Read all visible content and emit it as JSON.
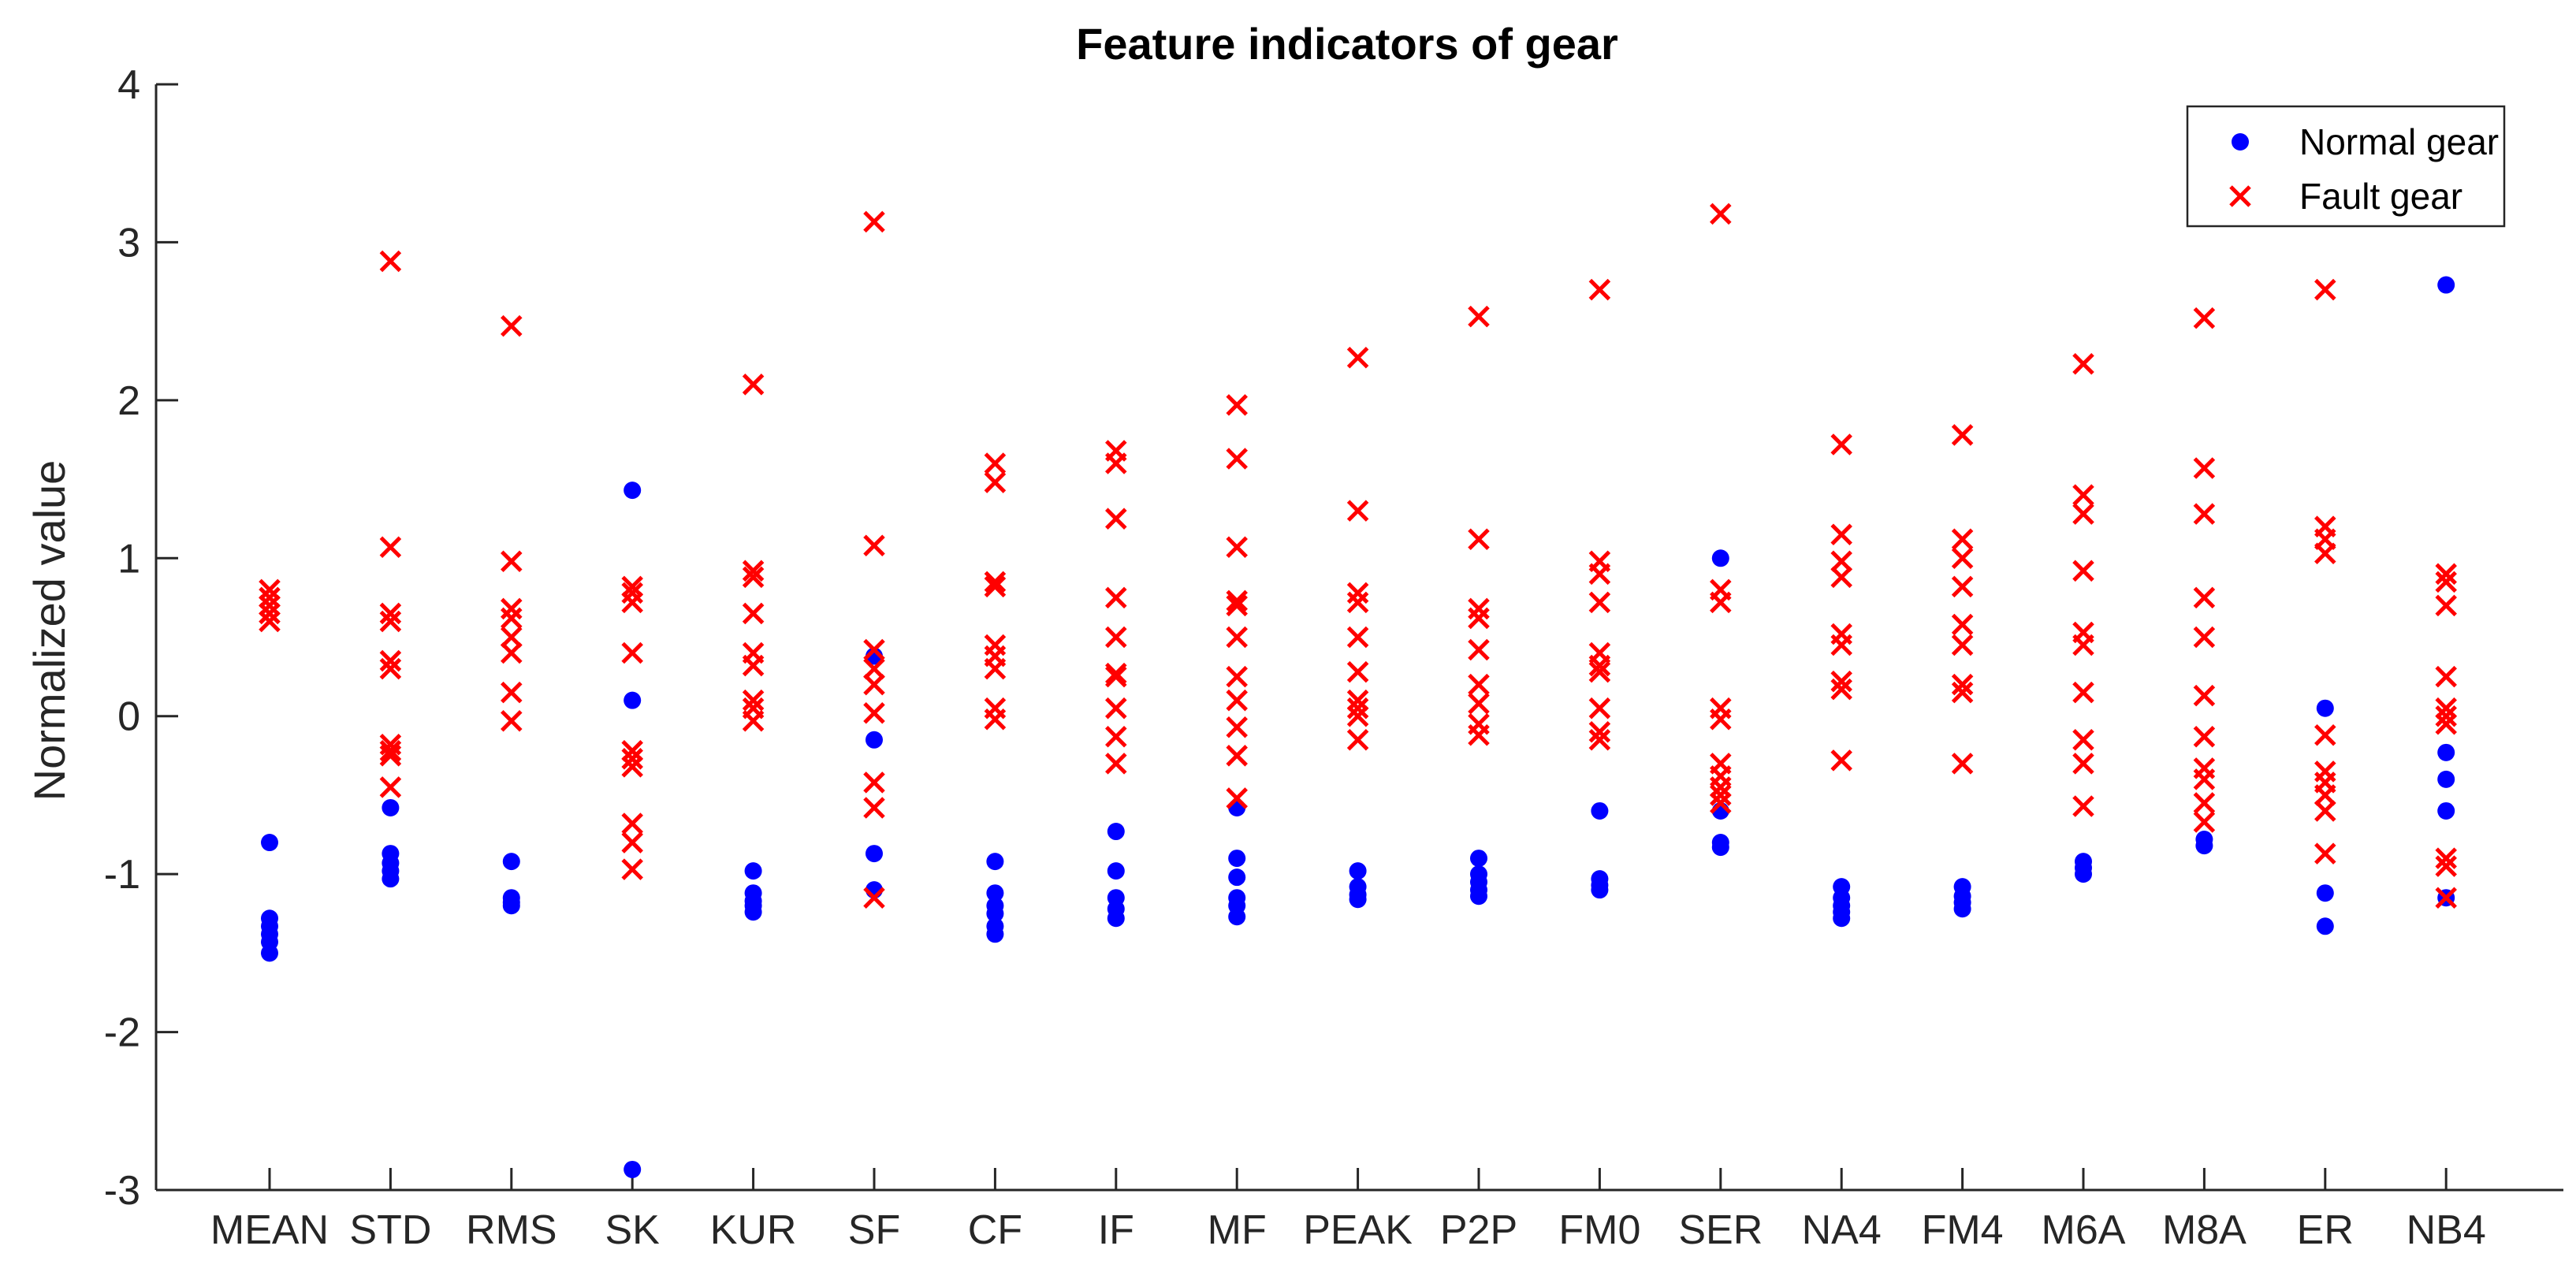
{
  "chart_data": {
    "type": "scatter",
    "title": "Feature indicators of gear",
    "xlabel": "",
    "ylabel": "Normalized value",
    "ylim": [
      -3,
      4
    ],
    "yticks": [
      "-3",
      "-2",
      "-1",
      "0",
      "1",
      "2",
      "3",
      "4"
    ],
    "categories": [
      "MEAN",
      "STD",
      "RMS",
      "SK",
      "KUR",
      "SF",
      "CF",
      "IF",
      "MF",
      "PEAK",
      "P2P",
      "FM0",
      "SER",
      "NA4",
      "FM4",
      "M6A",
      "M8A",
      "ER",
      "NB4"
    ],
    "grid": false,
    "legend_position": "top-right",
    "series": [
      {
        "name": "Normal gear",
        "color": "#0000ff",
        "marker": "filled-circle",
        "values": [
          [
            -0.8,
            -1.28,
            -1.33,
            -1.38,
            -1.43,
            -1.5
          ],
          [
            -0.58,
            -0.87,
            -0.93,
            -0.98,
            -1.03
          ],
          [
            -0.92,
            -1.15,
            -1.18,
            -1.2
          ],
          [
            1.43,
            0.1,
            -2.87
          ],
          [
            -0.98,
            -1.12,
            -1.17,
            -1.2,
            -1.24
          ],
          [
            0.38,
            -0.15,
            -0.87,
            -1.1
          ],
          [
            -0.92,
            -1.12,
            -1.2,
            -1.25,
            -1.33,
            -1.38
          ],
          [
            -0.73,
            -0.98,
            -1.15,
            -1.22,
            -1.28
          ],
          [
            -0.58,
            -0.9,
            -1.02,
            -1.15,
            -1.2,
            -1.27
          ],
          [
            -0.98,
            -1.08,
            -1.13,
            -1.16
          ],
          [
            -0.9,
            -1.0,
            -1.05,
            -1.1,
            -1.14
          ],
          [
            -0.6,
            -1.03,
            -1.07,
            -1.1
          ],
          [
            1.0,
            -0.6,
            -0.8,
            -0.83
          ],
          [
            -1.08,
            -1.15,
            -1.2,
            -1.24,
            -1.28
          ],
          [
            -1.08,
            -1.14,
            -1.18,
            -1.22
          ],
          [
            -0.92,
            -0.96,
            -1.0
          ],
          [
            -0.78,
            -0.82
          ],
          [
            0.05,
            -1.12,
            -1.33
          ],
          [
            2.73,
            -0.23,
            -0.4,
            -0.6,
            -1.15
          ]
        ]
      },
      {
        "name": "Fault gear",
        "color": "#ff0000",
        "marker": "x",
        "values": [
          [
            0.8,
            0.75,
            0.7,
            0.65,
            0.6
          ],
          [
            2.88,
            1.07,
            0.65,
            0.6,
            0.35,
            0.3,
            -0.18,
            -0.22,
            -0.25,
            -0.45
          ],
          [
            2.47,
            0.98,
            0.68,
            0.62,
            0.5,
            0.4,
            0.15,
            -0.03
          ],
          [
            0.82,
            0.78,
            0.72,
            0.4,
            -0.22,
            -0.27,
            -0.32,
            -0.68,
            -0.8,
            -0.97
          ],
          [
            2.1,
            0.92,
            0.88,
            0.65,
            0.4,
            0.32,
            0.1,
            0.05,
            -0.03
          ],
          [
            3.13,
            1.08,
            0.42,
            0.3,
            0.2,
            0.02,
            -0.42,
            -0.58,
            -1.15
          ],
          [
            1.6,
            1.48,
            0.85,
            0.82,
            0.45,
            0.38,
            0.3,
            0.05,
            -0.02
          ],
          [
            1.68,
            1.6,
            1.25,
            0.75,
            0.5,
            0.27,
            0.25,
            0.05,
            -0.13,
            -0.3
          ],
          [
            1.97,
            1.63,
            1.07,
            0.73,
            0.7,
            0.5,
            0.25,
            0.1,
            -0.07,
            -0.25,
            -0.52
          ],
          [
            2.27,
            1.3,
            0.78,
            0.72,
            0.5,
            0.28,
            0.1,
            0.05,
            0.0,
            -0.15
          ],
          [
            2.53,
            1.12,
            0.68,
            0.62,
            0.42,
            0.2,
            0.08,
            -0.05,
            -0.12
          ],
          [
            2.7,
            0.98,
            0.9,
            0.72,
            0.4,
            0.32,
            0.28,
            0.05,
            -0.1,
            -0.15
          ],
          [
            3.18,
            0.8,
            0.72,
            0.05,
            -0.02,
            -0.3,
            -0.38,
            -0.45,
            -0.5,
            -0.55
          ],
          [
            1.72,
            1.15,
            0.98,
            0.88,
            0.52,
            0.45,
            0.22,
            0.17,
            -0.28
          ],
          [
            1.78,
            1.12,
            1.0,
            0.82,
            0.58,
            0.45,
            0.2,
            0.15,
            -0.3
          ],
          [
            2.23,
            1.4,
            1.28,
            0.92,
            0.53,
            0.45,
            0.15,
            -0.15,
            -0.3,
            -0.57
          ],
          [
            2.52,
            1.57,
            1.28,
            0.75,
            0.5,
            0.13,
            -0.13,
            -0.33,
            -0.4,
            -0.55,
            -0.67
          ],
          [
            2.7,
            1.2,
            1.12,
            1.03,
            -0.12,
            -0.35,
            -0.42,
            -0.5,
            -0.6,
            -0.87
          ],
          [
            0.9,
            0.85,
            0.7,
            0.25,
            0.05,
            0.0,
            -0.05,
            -0.9,
            -0.95,
            -1.15
          ]
        ]
      }
    ]
  }
}
